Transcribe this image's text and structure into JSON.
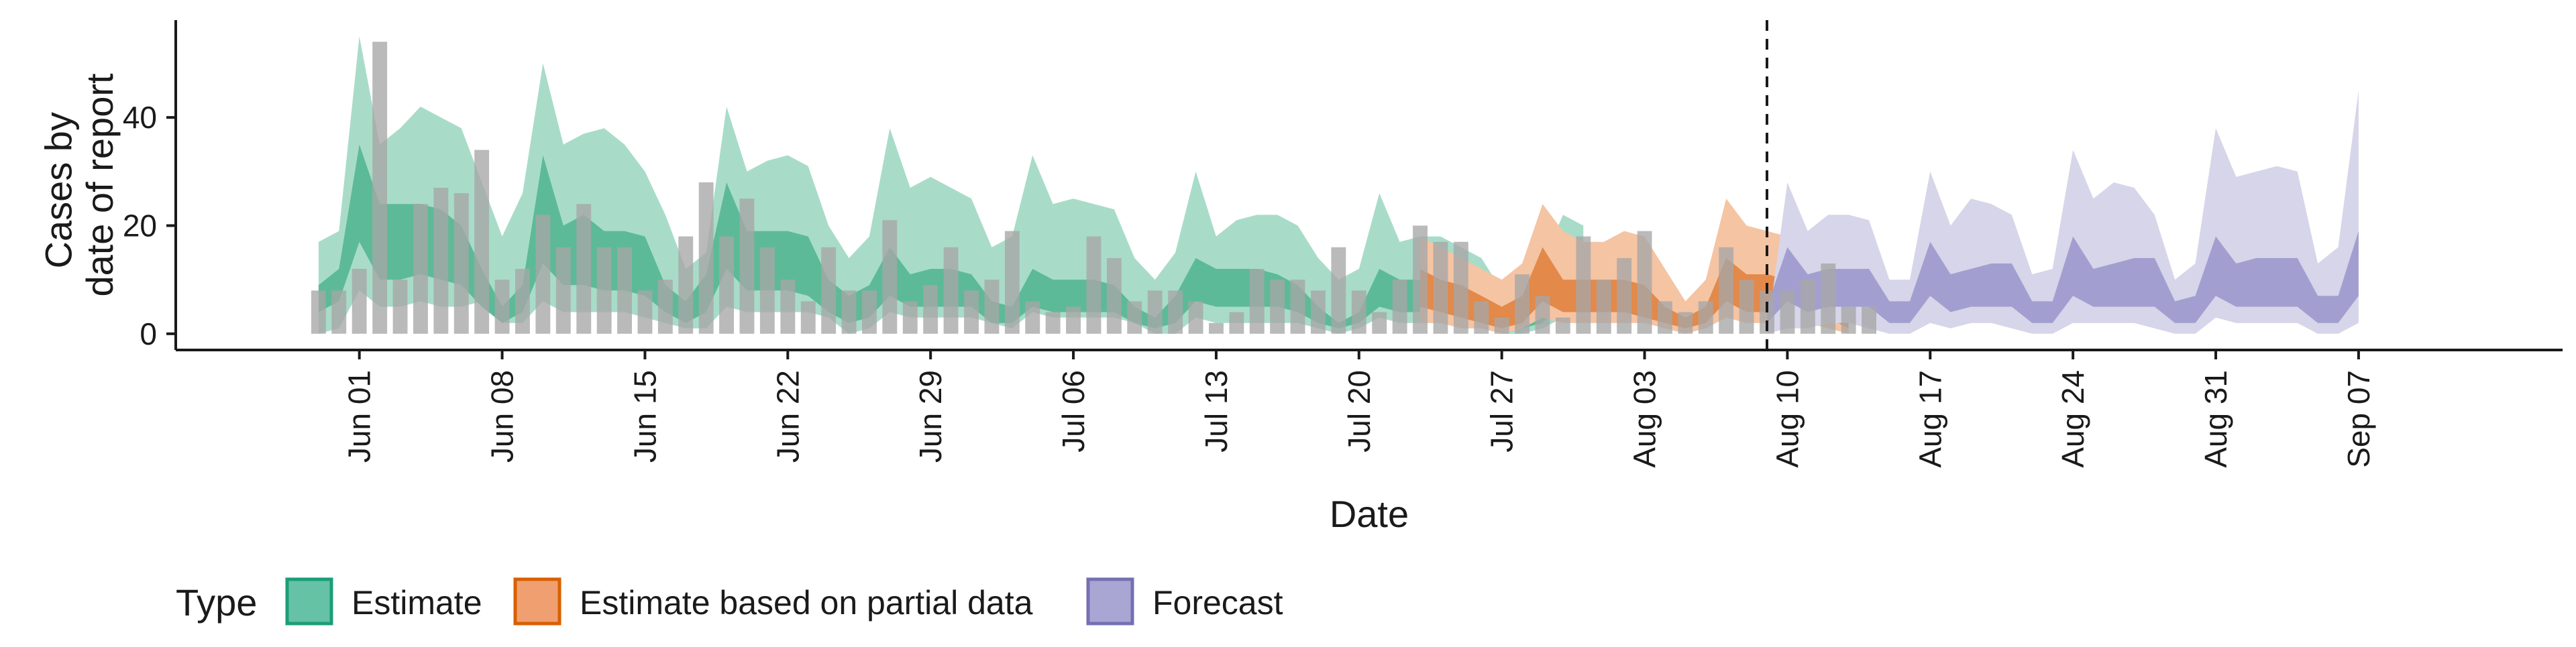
{
  "chart_data": {
    "type": "area",
    "title": "",
    "xlabel": "Date",
    "ylabel_lines": [
      "Cases by",
      "date of report"
    ],
    "x_range": [
      "2020-05-23",
      "2020-09-17"
    ],
    "ylim": [
      -3,
      58
    ],
    "y_ticks": [
      0,
      20,
      40
    ],
    "x_ticks": [
      {
        "date": "2020-06-01",
        "label": "Jun 01"
      },
      {
        "date": "2020-06-08",
        "label": "Jun 08"
      },
      {
        "date": "2020-06-15",
        "label": "Jun 15"
      },
      {
        "date": "2020-06-22",
        "label": "Jun 22"
      },
      {
        "date": "2020-06-29",
        "label": "Jun 29"
      },
      {
        "date": "2020-07-06",
        "label": "Jul 06"
      },
      {
        "date": "2020-07-13",
        "label": "Jul 13"
      },
      {
        "date": "2020-07-20",
        "label": "Jul 20"
      },
      {
        "date": "2020-07-27",
        "label": "Jul 27"
      },
      {
        "date": "2020-08-03",
        "label": "Aug 03"
      },
      {
        "date": "2020-08-10",
        "label": "Aug 10"
      },
      {
        "date": "2020-08-17",
        "label": "Aug 17"
      },
      {
        "date": "2020-08-24",
        "label": "Aug 24"
      },
      {
        "date": "2020-08-31",
        "label": "Aug 31"
      },
      {
        "date": "2020-09-07",
        "label": "Sep 07"
      }
    ],
    "forecast_date": "2020-08-09",
    "grid": false,
    "legend": {
      "title": "Type",
      "position": "bottom-left",
      "items": [
        {
          "label": "Estimate",
          "fill": "#66c2a5",
          "stroke": "#1b9e77"
        },
        {
          "label": "Estimate based on partial data",
          "fill": "#f0a070",
          "stroke": "#d95f02"
        },
        {
          "label": "Forecast",
          "fill": "#a9a6d3",
          "stroke": "#7570b3"
        }
      ]
    },
    "colors": {
      "estimate_outer": "#a8dcc9",
      "estimate_inner": "#5dba98",
      "partial_outer": "#f5c4a3",
      "partial_inner": "#e3894a",
      "forecast_outer": "#d6d5e9",
      "forecast_inner": "#a29fd0",
      "bar": "#a6a6a6"
    },
    "observed_cases": {
      "start_date": "2020-05-30",
      "values": [
        8,
        8,
        12,
        54,
        10,
        24,
        27,
        26,
        34,
        10,
        12,
        22,
        16,
        24,
        16,
        16,
        8,
        10,
        18,
        28,
        18,
        25,
        16,
        10,
        6,
        16,
        8,
        8,
        21,
        6,
        9,
        16,
        8,
        10,
        19,
        6,
        4,
        5,
        18,
        14,
        6,
        8,
        8,
        6,
        2,
        4,
        12,
        10,
        10,
        8,
        16,
        8,
        4,
        10,
        20,
        17,
        17,
        6,
        3,
        11,
        7,
        3,
        18,
        10,
        14,
        19,
        6,
        4,
        6,
        16,
        10,
        8,
        8,
        10,
        13,
        5,
        5
      ]
    },
    "series": [
      {
        "name": "Estimate",
        "start_date": "2020-05-30",
        "upper_90": [
          17,
          19,
          55,
          35,
          38,
          42,
          40,
          38,
          28,
          18,
          26,
          50,
          35,
          37,
          38,
          35,
          30,
          22,
          12,
          15,
          42,
          30,
          32,
          33,
          31,
          20,
          14,
          18,
          38,
          27,
          29,
          27,
          25,
          16,
          18,
          33,
          24,
          25,
          24,
          23,
          14,
          10,
          15,
          30,
          18,
          21,
          22,
          22,
          20,
          14,
          10,
          12,
          26,
          17,
          18,
          18,
          16,
          14,
          8,
          9,
          13,
          22,
          20
        ],
        "lower_90": [
          0,
          1,
          8,
          5,
          5,
          6,
          5,
          5,
          6,
          2,
          2,
          6,
          4,
          4,
          4,
          4,
          3,
          2,
          1,
          1,
          5,
          4,
          4,
          4,
          4,
          3,
          0,
          1,
          4,
          3,
          3,
          3,
          3,
          2,
          1,
          4,
          3,
          3,
          3,
          3,
          2,
          0,
          0,
          3,
          2,
          2,
          2,
          2,
          2,
          1,
          0,
          1,
          3,
          2,
          2,
          2,
          2,
          2,
          0,
          0,
          1,
          3,
          2
        ],
        "upper_50": [
          9,
          12,
          35,
          24,
          24,
          24,
          23,
          20,
          12,
          5,
          9,
          33,
          20,
          22,
          19,
          19,
          18,
          9,
          6,
          11,
          28,
          19,
          19,
          19,
          18,
          10,
          7,
          9,
          16,
          11,
          12,
          12,
          11,
          6,
          5,
          12,
          10,
          10,
          10,
          9,
          5,
          3,
          7,
          14,
          12,
          12,
          12,
          11,
          9,
          5,
          2,
          4,
          12,
          10,
          10,
          10,
          9,
          8,
          4,
          3,
          4,
          12,
          8
        ],
        "lower_50": [
          4,
          6,
          17,
          10,
          10,
          11,
          10,
          9,
          5,
          2,
          4,
          13,
          9,
          9,
          8,
          8,
          7,
          4,
          2,
          4,
          12,
          8,
          8,
          8,
          7,
          4,
          2,
          3,
          7,
          5,
          5,
          5,
          5,
          2,
          2,
          5,
          4,
          4,
          4,
          4,
          2,
          1,
          2,
          6,
          5,
          5,
          5,
          5,
          4,
          2,
          1,
          2,
          5,
          4,
          4,
          4,
          4,
          3,
          2,
          1,
          2,
          6,
          4
        ]
      },
      {
        "name": "Estimate based on partial data",
        "start_date": "2020-07-23",
        "upper_90": [
          18,
          16,
          14,
          12,
          10,
          13,
          24,
          19,
          17,
          17,
          19,
          18,
          12,
          6,
          10,
          25,
          20,
          19,
          18,
          18,
          17,
          8
        ],
        "lower_90": [
          2,
          2,
          1,
          1,
          0,
          1,
          3,
          2,
          2,
          2,
          2,
          2,
          1,
          0,
          1,
          3,
          2,
          2,
          2,
          2,
          1,
          0
        ],
        "upper_50": [
          12,
          10,
          9,
          7,
          5,
          7,
          16,
          10,
          10,
          10,
          10,
          9,
          5,
          3,
          5,
          14,
          11,
          11,
          10,
          10,
          8,
          4
        ],
        "lower_50": [
          5,
          4,
          3,
          2,
          1,
          2,
          6,
          4,
          4,
          4,
          4,
          3,
          2,
          1,
          2,
          6,
          4,
          4,
          4,
          4,
          3,
          1
        ]
      },
      {
        "name": "Forecast",
        "start_date": "2020-08-09",
        "upper_90": [
          0,
          28,
          19,
          22,
          22,
          21,
          10,
          10,
          30,
          20,
          25,
          24,
          22,
          11,
          12,
          34,
          25,
          28,
          27,
          22,
          10,
          13,
          38,
          29,
          30,
          31,
          30,
          13,
          16,
          45
        ],
        "lower_90": [
          0,
          1,
          1,
          2,
          2,
          1,
          0,
          0,
          2,
          1,
          2,
          2,
          1,
          0,
          0,
          2,
          2,
          2,
          2,
          1,
          0,
          0,
          3,
          2,
          2,
          2,
          2,
          0,
          0,
          2
        ],
        "upper_50": [
          5,
          16,
          11,
          12,
          12,
          12,
          6,
          6,
          17,
          11,
          12,
          13,
          13,
          6,
          6,
          18,
          12,
          13,
          14,
          14,
          6,
          7,
          18,
          13,
          14,
          14,
          14,
          7,
          7,
          19
        ],
        "lower_50": [
          2,
          6,
          4,
          5,
          5,
          5,
          2,
          2,
          7,
          4,
          5,
          5,
          5,
          2,
          2,
          7,
          5,
          5,
          5,
          5,
          2,
          2,
          7,
          5,
          5,
          5,
          5,
          2,
          2,
          7
        ]
      }
    ]
  }
}
